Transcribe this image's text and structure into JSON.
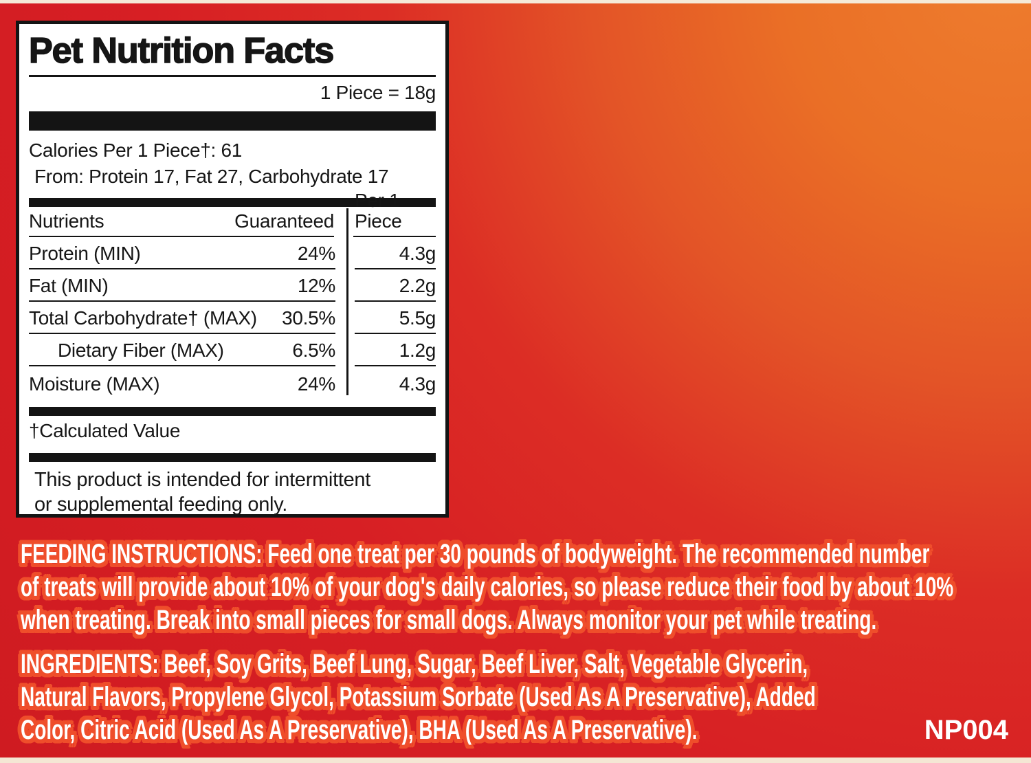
{
  "colors": {
    "background_red": "#d71f24",
    "background_orange": "#ee7c2e",
    "panel_bg": "#ffffff",
    "panel_ink": "#141414",
    "copy_white": "#ffffff",
    "copy_outline": "#ef4e2b",
    "edge_strip": "#f5ead8"
  },
  "panel": {
    "title": "Pet Nutrition Facts",
    "serving": "1 Piece = 18g",
    "calories_line": "Calories Per 1 Piece†: 61",
    "calories_from": "From: Protein 17, Fat 27, Carbohydrate 17",
    "table": {
      "headers": {
        "nutrients": "Nutrients",
        "guaranteed": "Guaranteed",
        "per_piece": "Per 1 Piece"
      },
      "rows": [
        {
          "name": "Protein (MIN)",
          "guaranteed": "24%",
          "per_piece": "4.3g"
        },
        {
          "name": "Fat (MIN)",
          "guaranteed": "12%",
          "per_piece": "2.2g"
        },
        {
          "name": "Total Carbohydrate† (MAX)",
          "guaranteed": "30.5%",
          "per_piece": "5.5g"
        },
        {
          "name": "Dietary Fiber (MAX)",
          "guaranteed": "6.5%",
          "per_piece": "1.2g"
        },
        {
          "name": "Moisture (MAX)",
          "guaranteed": "24%",
          "per_piece": "4.3g"
        }
      ]
    },
    "footnote": "†Calculated Value",
    "disclaimer_lines": [
      "This product is intended for intermittent",
      "or supplemental feeding only."
    ]
  },
  "feeding": {
    "lines": [
      "FEEDING INSTRUCTIONS: Feed one treat per 30 pounds of bodyweight. The recommended number",
      "of treats will provide about 10% of your dog's daily calories, so please reduce their food by about 10%",
      "when treating. Break into small pieces for small dogs. Always monitor your pet while treating."
    ]
  },
  "ingredients": {
    "lines": [
      "INGREDIENTS: Beef, Soy Grits, Beef Lung, Sugar, Beef Liver, Salt, Vegetable Glycerin,",
      "Natural Flavors, Propylene Glycol, Potassium Sorbate (Used As A Preservative), Added",
      "Color, Citric Acid (Used As A Preservative), BHA (Used As A Preservative)."
    ],
    "code": "NP004"
  }
}
